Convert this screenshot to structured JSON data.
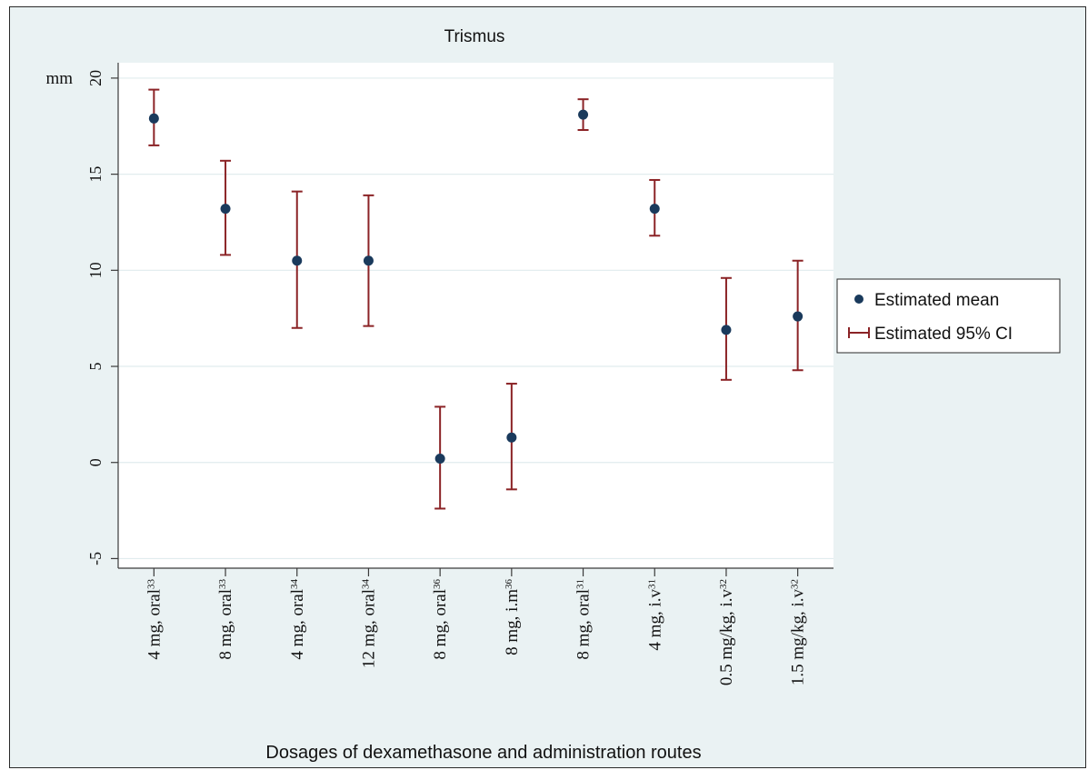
{
  "chart_data": {
    "type": "scatter",
    "title": "Trismus",
    "xlabel": "Dosages of dexamethasone and administration routes",
    "y_unit_label": "mm",
    "ylim": [
      -5.5,
      20.8
    ],
    "yticks": [
      -5,
      0,
      5,
      10,
      15,
      20
    ],
    "ytick_labels": [
      "-5",
      "0",
      "5",
      "10",
      "15",
      "20"
    ],
    "grid": true,
    "legend_position": "right",
    "legend": [
      {
        "marker": "dot",
        "label": "Estimated mean"
      },
      {
        "marker": "capped-bar",
        "label": "Estimated 95% CI"
      }
    ],
    "categories": [
      {
        "label": "4 mg, oral",
        "ref": "33"
      },
      {
        "label": "8 mg, oral",
        "ref": "33"
      },
      {
        "label": "4 mg, oral",
        "ref": "34"
      },
      {
        "label": "12 mg, oral",
        "ref": "34"
      },
      {
        "label": "8 mg, oral",
        "ref": "36"
      },
      {
        "label": "8 mg, i.m",
        "ref": "36"
      },
      {
        "label": "8 mg, oral",
        "ref": "31"
      },
      {
        "label": "4 mg, i.v",
        "ref": "31"
      },
      {
        "label": "0.5 mg/kg, i.v",
        "ref": "32"
      },
      {
        "label": "1.5 mg/kg, i.v",
        "ref": "32"
      }
    ],
    "series": [
      {
        "name": "Estimated mean",
        "values": [
          17.9,
          13.2,
          10.5,
          10.5,
          0.2,
          1.3,
          18.1,
          13.2,
          6.9,
          7.6
        ]
      },
      {
        "name": "Estimated 95% CI",
        "lower": [
          16.5,
          10.8,
          7.0,
          7.1,
          -2.4,
          -1.4,
          17.3,
          11.8,
          4.3,
          4.8
        ],
        "upper": [
          19.4,
          15.7,
          14.1,
          13.9,
          2.9,
          4.1,
          18.9,
          14.7,
          9.6,
          10.5
        ]
      }
    ],
    "colors": {
      "background": "#eaf2f3",
      "plot": "#ffffff",
      "grid": "#e1ecee",
      "point": "#1a3a5c",
      "ci": "#8b2326"
    }
  }
}
